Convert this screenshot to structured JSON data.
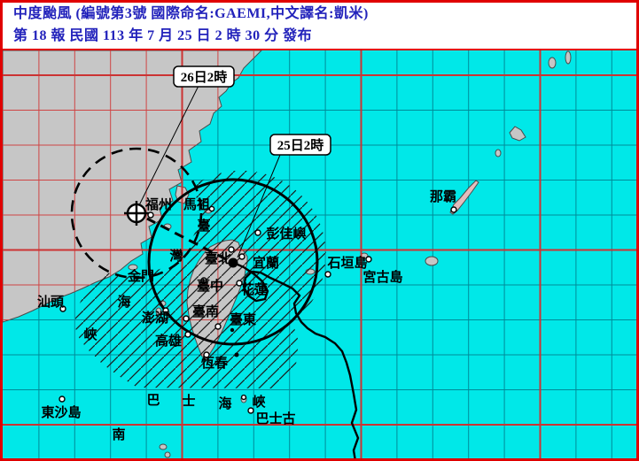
{
  "header": {
    "line1": "中度颱風 (編號第3號  國際命名:GAEMI,中文譯名:凱米)",
    "line2": "第 18 報  民國 113 年 7 月 25 日 2 時 30 分 發布"
  },
  "callouts": {
    "forecast_time": "26日2時",
    "current_time": "25日2時"
  },
  "places": {
    "shantou": "汕頭",
    "fuzhou": "福州",
    "mazu": "馬祖",
    "kinmen": "金門",
    "pengjiayu": "彭佳嶼",
    "taipei": "臺北",
    "yilan": "宜蘭",
    "taichung": "臺中",
    "hualien": "花蓮",
    "tainan": "臺南",
    "taitung": "臺東",
    "penghu": "澎湖",
    "kaohsiung": "高雄",
    "hengchun": "恆春",
    "naha": "那霸",
    "ishigaki": "石垣島",
    "miyako": "宮古島",
    "dongsha": "東沙島",
    "basco": "巴士古",
    "south_china_sea": "南"
  },
  "taiwan_strait_chars": [
    "臺",
    "灣",
    "海",
    "峽"
  ],
  "bashi_channel_chars": [
    "巴",
    "士",
    "海",
    "峽"
  ],
  "colors": {
    "sea": "#00e8e8",
    "land": "#c6c6c6",
    "okinawa_land": "#e3bdbd",
    "grid_minor_sea": "#008b99",
    "grid_minor_land": "#cf4444",
    "grid_major": "#cc3333",
    "header_text": "#2222bb",
    "border": "#e00000",
    "track": "#000000"
  }
}
